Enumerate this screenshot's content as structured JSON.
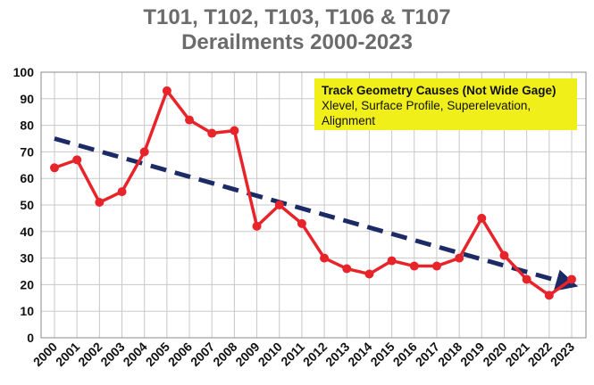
{
  "title_lines": [
    "T101, T102, T103, T106 & T107",
    "Derailments 2000-2023"
  ],
  "annotation": {
    "heading": "Track Geometry Causes (Not Wide Gage)",
    "body": "Xlevel, Surface Profile, Superelevation, Alignment",
    "color": "#f0ef1a"
  },
  "chart_data": {
    "type": "line",
    "title": "T101, T102, T103, T106 & T107 Derailments 2000-2023",
    "xlabel": "",
    "ylabel": "",
    "categories": [
      "2000",
      "2001",
      "2002",
      "2003",
      "2004",
      "2005",
      "2006",
      "2007",
      "2008",
      "2009",
      "2010",
      "2011",
      "2012",
      "2013",
      "2014",
      "2015",
      "2016",
      "2017",
      "2018",
      "2019",
      "2020",
      "2021",
      "2022",
      "2023"
    ],
    "series": [
      {
        "values": [
          64,
          67,
          51,
          55,
          70,
          93,
          82,
          77,
          78,
          42,
          50,
          43,
          30,
          26,
          24,
          29,
          27,
          27,
          30,
          45,
          31,
          22,
          16,
          22
        ],
        "color": "#e8242b",
        "marker": "circle"
      }
    ],
    "trendline": {
      "start": [
        "2000",
        75
      ],
      "end": [
        "2023",
        20
      ],
      "style": "dashed-arrow",
      "color": "#1c2a66"
    },
    "ylim": [
      0,
      100
    ],
    "yticks": [
      0,
      10,
      20,
      30,
      40,
      50,
      60,
      70,
      80,
      90,
      100
    ],
    "grid": true,
    "legend": "none"
  }
}
